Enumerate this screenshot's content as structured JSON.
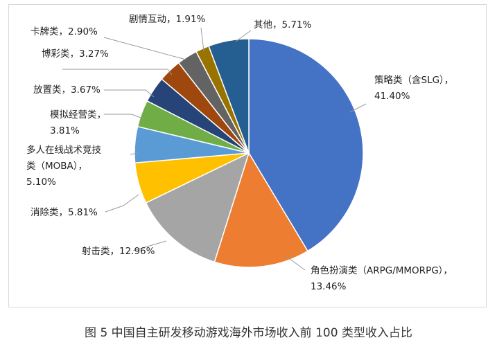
{
  "chart_data": {
    "type": "pie",
    "caption": "图 5 中国自主研发移动游戏海外市场收入前 100 类型收入占比",
    "slices": [
      {
        "name": "策略类（含SLG）",
        "value": 41.4,
        "value_label": "41.40%",
        "color": "#4472C4"
      },
      {
        "name": "角色扮演类（ARPG/MMORPG）",
        "value": 13.46,
        "value_label": "13.46%",
        "color": "#ED7D31"
      },
      {
        "name": "射击类",
        "value": 12.96,
        "value_label": "12.96%",
        "color": "#A5A5A5"
      },
      {
        "name": "消除类",
        "value": 5.81,
        "value_label": "5.81%",
        "color": "#FFC000"
      },
      {
        "name": "多人在线战术竞技类（MOBA）",
        "value": 5.1,
        "value_label": "5.10%",
        "color": "#5B9BD5"
      },
      {
        "name": "模拟经营类",
        "value": 3.81,
        "value_label": "3.81%",
        "color": "#70AD47"
      },
      {
        "name": "放置类",
        "value": 3.67,
        "value_label": "3.67%",
        "color": "#264478"
      },
      {
        "name": "博彩类",
        "value": 3.27,
        "value_label": "3.27%",
        "color": "#9E480E"
      },
      {
        "name": "卡牌类",
        "value": 2.9,
        "value_label": "2.90%",
        "color": "#636363"
      },
      {
        "name": "剧情互动",
        "value": 1.91,
        "value_label": "1.91%",
        "color": "#997300"
      },
      {
        "name": "其他",
        "value": 5.71,
        "value_label": "5.71%",
        "color": "#255E91"
      }
    ]
  }
}
